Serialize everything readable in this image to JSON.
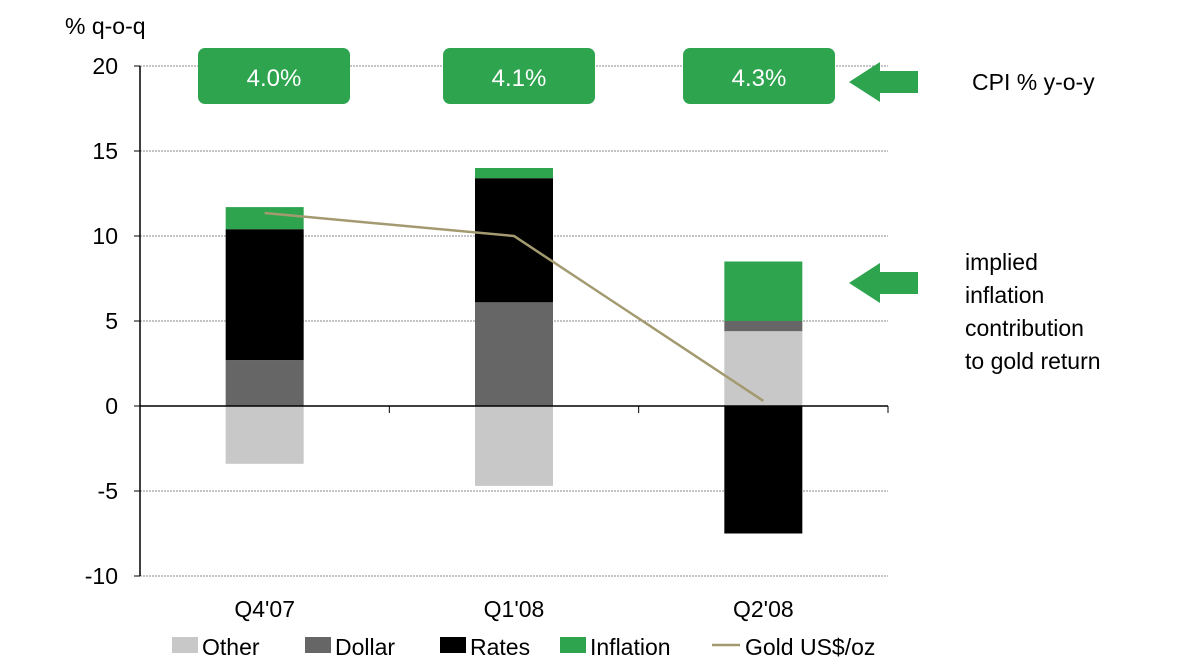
{
  "chart_data": {
    "type": "bar",
    "stacked": true,
    "ylabel": "% q-o-q",
    "ylim": [
      -10,
      20
    ],
    "yticks": [
      -10,
      -5,
      0,
      5,
      10,
      15,
      20
    ],
    "grid": true,
    "categories": [
      "Q4'07",
      "Q1'08",
      "Q2'08"
    ],
    "series": [
      {
        "name": "Other",
        "color": "#c8c8c8",
        "values": [
          -3.4,
          -4.7,
          4.4
        ]
      },
      {
        "name": "Dollar",
        "color": "#666666",
        "values": [
          2.7,
          6.1,
          0.6
        ]
      },
      {
        "name": "Rates",
        "color": "#000000",
        "values": [
          7.7,
          7.3,
          -7.5
        ]
      },
      {
        "name": "Inflation",
        "color": "#2ea44f",
        "values": [
          1.3,
          0.6,
          3.5
        ]
      }
    ],
    "line_series": {
      "name": "Gold US$/oz",
      "color": "#a39a70",
      "values": [
        11.35,
        10.0,
        0.3
      ]
    },
    "cpi_labels": [
      "4.0%",
      "4.1%",
      "4.3%"
    ],
    "annotations": {
      "cpi": "CPI % y-o-y",
      "implied": [
        "implied",
        "inflation",
        "contribution",
        "to gold return"
      ]
    },
    "legend_placement": "bottom"
  }
}
